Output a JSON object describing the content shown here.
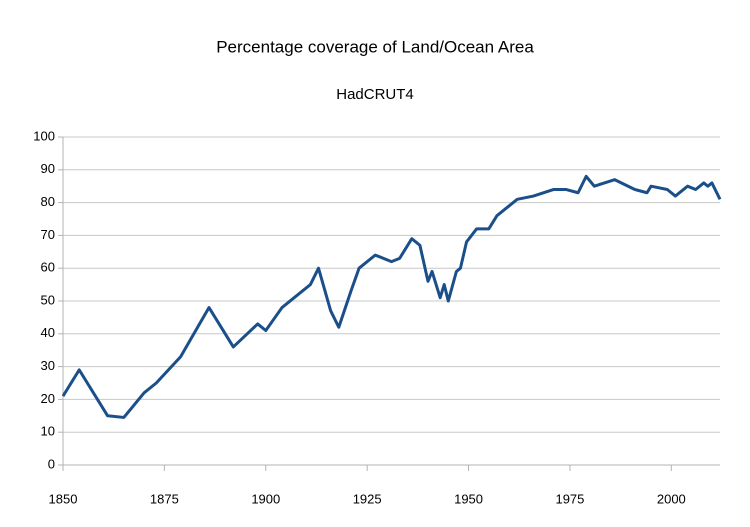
{
  "chart_data": {
    "type": "line",
    "title": "Percentage coverage of Land/Ocean Area",
    "subtitle": "HadCRUT4",
    "x": [
      1850,
      1854,
      1861,
      1865,
      1870,
      1873,
      1879,
      1886,
      1892,
      1898,
      1900,
      1904,
      1907,
      1911,
      1913,
      1916,
      1918,
      1921,
      1923,
      1927,
      1931,
      1933,
      1936,
      1938,
      1940,
      1941,
      1943,
      1944,
      1945,
      1947,
      1948,
      1949.5,
      1952,
      1955,
      1957,
      1962,
      1966,
      1971,
      1974,
      1977,
      1979,
      1981,
      1986,
      1991,
      1994,
      1995,
      1999,
      2001,
      2004,
      2006,
      2008,
      2009,
      2010,
      2012
    ],
    "series": [
      {
        "name": "HadCRUT4",
        "color": "#1b4f8a",
        "values": [
          21,
          29,
          15,
          14.5,
          22,
          25,
          33,
          48,
          36,
          43,
          41,
          48,
          51,
          55,
          60,
          47,
          42,
          53,
          60,
          64,
          62,
          63,
          69,
          67,
          56,
          59,
          51,
          55,
          50,
          59,
          60,
          68,
          72,
          72,
          76,
          81,
          82,
          84,
          84,
          83,
          88,
          85,
          87,
          84,
          83,
          85,
          84,
          82,
          85,
          84,
          86,
          85,
          86,
          81
        ]
      }
    ],
    "xlim": [
      1850,
      2012
    ],
    "xticks": [
      1850,
      1875,
      1900,
      1925,
      1950,
      1975,
      2000
    ],
    "ylim": [
      0,
      100
    ],
    "yticks": [
      0,
      10,
      20,
      30,
      40,
      50,
      60,
      70,
      80,
      90,
      100
    ],
    "grid": true
  }
}
